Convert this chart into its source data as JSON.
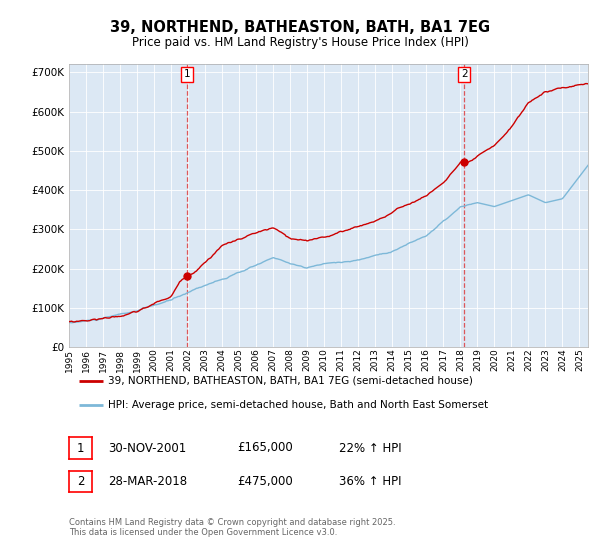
{
  "title": "39, NORTHEND, BATHEASTON, BATH, BA1 7EG",
  "subtitle": "Price paid vs. HM Land Registry's House Price Index (HPI)",
  "ylim": [
    0,
    720000
  ],
  "yticks": [
    0,
    100000,
    200000,
    300000,
    400000,
    500000,
    600000,
    700000
  ],
  "year_start": 1995,
  "year_end": 2025,
  "hpi_color": "#7db8d8",
  "price_color": "#cc0000",
  "marker1_year": 2001.92,
  "marker1_price": 165000,
  "marker2_year": 2018.23,
  "marker2_price": 475000,
  "legend1": "39, NORTHEND, BATHEASTON, BATH, BA1 7EG (semi-detached house)",
  "legend2": "HPI: Average price, semi-detached house, Bath and North East Somerset",
  "table_row1_num": "1",
  "table_row1_date": "30-NOV-2001",
  "table_row1_price": "£165,000",
  "table_row1_pct": "22% ↑ HPI",
  "table_row2_num": "2",
  "table_row2_date": "28-MAR-2018",
  "table_row2_price": "£475,000",
  "table_row2_pct": "36% ↑ HPI",
  "footnote": "Contains HM Land Registry data © Crown copyright and database right 2025.\nThis data is licensed under the Open Government Licence v3.0.",
  "plot_bg_color": "#dce8f4"
}
